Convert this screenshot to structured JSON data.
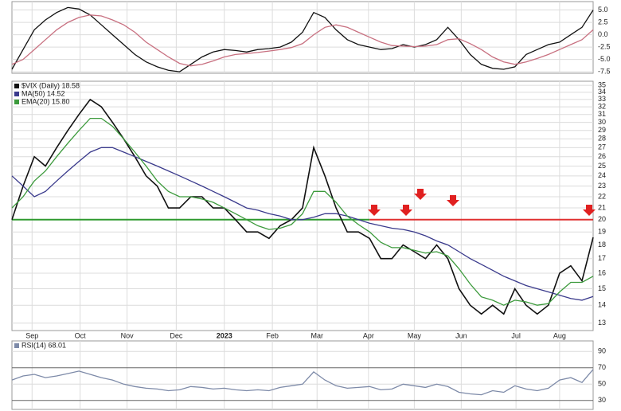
{
  "chart_data": [
    {
      "type": "line",
      "x": [
        0,
        1,
        2,
        3,
        4,
        5,
        6,
        7,
        8,
        9,
        10,
        11,
        12,
        13,
        14,
        15,
        16,
        17,
        18,
        19,
        20,
        21,
        22,
        23,
        24,
        25,
        26,
        27,
        28,
        29,
        30,
        31,
        32,
        33,
        34,
        35,
        36,
        37,
        38,
        39,
        40,
        41,
        42,
        43,
        44,
        45,
        46,
        47,
        48,
        49,
        50,
        51,
        52
      ],
      "xlim": [
        0,
        52
      ],
      "ylim": [
        -7.8,
        6.7
      ],
      "yticks": [
        {
          "value": 5,
          "label": "5.0"
        },
        2.5,
        {
          "value": 0,
          "label": "0.0"
        },
        -2.5,
        {
          "value": -5,
          "label": "-5.0"
        },
        -7.5
      ],
      "series": [
        {
          "color": "#111111",
          "values": [
            -7,
            -3,
            1,
            3,
            4.5,
            5.5,
            5.2,
            4,
            2,
            0,
            -2,
            -4,
            -5.5,
            -6.5,
            -7.2,
            -7.5,
            -6,
            -4.5,
            -3.5,
            -3,
            -3.2,
            -3.5,
            -3,
            -2.8,
            -2.5,
            -1.5,
            0.5,
            4.5,
            3.5,
            1,
            -1,
            -2,
            -2.5,
            -3,
            -2.8,
            -2,
            -2.5,
            -2,
            -1,
            1.5,
            -1,
            -4,
            -6,
            -6.8,
            -7,
            -6.5,
            -4,
            -3,
            -2,
            -1.5,
            0,
            1.5,
            5
          ]
        },
        {
          "color": "#c87080",
          "values": [
            -6,
            -5,
            -3,
            -1,
            1,
            2.5,
            3.5,
            4,
            3.8,
            3,
            2,
            0.5,
            -1.5,
            -3,
            -4.5,
            -5.8,
            -6.3,
            -6,
            -5.3,
            -4.5,
            -4,
            -3.8,
            -3.6,
            -3.3,
            -3,
            -2.6,
            -1.8,
            0,
            1.5,
            2,
            1.5,
            0.5,
            -0.5,
            -1.5,
            -2.2,
            -2.3,
            -2.4,
            -2.3,
            -2,
            -1,
            -0.8,
            -1.8,
            -3,
            -4.5,
            -5.5,
            -6,
            -5.5,
            -4.8,
            -4,
            -3,
            -2,
            -1,
            1
          ]
        }
      ]
    },
    {
      "type": "line",
      "log_y": true,
      "x": [
        0,
        1,
        2,
        3,
        4,
        5,
        6,
        7,
        8,
        9,
        10,
        11,
        12,
        13,
        14,
        15,
        16,
        17,
        18,
        19,
        20,
        21,
        22,
        23,
        24,
        25,
        26,
        27,
        28,
        29,
        30,
        31,
        32,
        33,
        34,
        35,
        36,
        37,
        38,
        39,
        40,
        41,
        42,
        43,
        44,
        45,
        46,
        47,
        48,
        49,
        50,
        51,
        52
      ],
      "xlim": [
        0,
        52
      ],
      "ylim": [
        12.6,
        35.6
      ],
      "xticks": [
        {
          "value": 1.8,
          "label": "Sep"
        },
        {
          "value": 6.1,
          "label": "Oct"
        },
        {
          "value": 10.3,
          "label": "Nov"
        },
        {
          "value": 14.7,
          "label": "Dec"
        },
        {
          "value": 19.0,
          "label": "2023"
        },
        {
          "value": 23.3,
          "label": "Feb"
        },
        {
          "value": 27.3,
          "label": "Mar"
        },
        {
          "value": 31.9,
          "label": "Apr"
        },
        {
          "value": 36.0,
          "label": "May"
        },
        {
          "value": 40.2,
          "label": "Jun"
        },
        {
          "value": 45.1,
          "label": "Jul"
        },
        {
          "value": 49.0,
          "label": "Aug"
        }
      ],
      "yticks": [
        13,
        14,
        15,
        16,
        17,
        18,
        19,
        20,
        21,
        22,
        23,
        24,
        25,
        26,
        27,
        28,
        29,
        30,
        31,
        32,
        33,
        34,
        35
      ],
      "grid": true,
      "hlines": [
        {
          "value": 20,
          "color": "#2e9a2e",
          "x": [
            0,
            32
          ]
        },
        {
          "value": 20,
          "color": "#e03030",
          "x": [
            32,
            52
          ]
        }
      ],
      "series": [
        {
          "name": "$VIX (Daily) 18.58",
          "color": "#111111",
          "values": [
            20,
            23,
            26,
            25,
            27,
            29,
            31,
            33,
            32,
            30,
            28,
            26,
            24,
            23,
            21,
            21,
            22,
            22,
            21,
            21,
            20,
            19,
            19,
            18.5,
            19.5,
            20,
            21,
            27,
            24,
            21,
            19,
            19,
            18.5,
            17,
            17,
            18,
            17.5,
            17,
            18,
            17,
            15,
            14,
            13.5,
            14,
            13.5,
            15,
            14,
            13.5,
            14,
            16,
            16.5,
            15.5,
            18.58
          ]
        },
        {
          "name": "MA(50) 14.52",
          "color": "#3a3a8c",
          "values": [
            24,
            23,
            22,
            22.5,
            23.5,
            24.5,
            25.5,
            26.5,
            27,
            27,
            26.5,
            26,
            25.5,
            25,
            24.5,
            24,
            23.5,
            23,
            22.5,
            22,
            21.5,
            21,
            20.8,
            20.5,
            20.3,
            20,
            20,
            20.2,
            20.5,
            20.5,
            20.3,
            20,
            19.7,
            19.5,
            19.3,
            19.2,
            19,
            18.7,
            18.3,
            18,
            17.5,
            17,
            16.6,
            16.2,
            15.8,
            15.5,
            15.2,
            15,
            14.8,
            14.6,
            14.4,
            14.3,
            14.52
          ]
        },
        {
          "name": "EMA(20) 15.80",
          "color": "#3c9a3c",
          "values": [
            21,
            22,
            23.5,
            24.5,
            26,
            27.5,
            29,
            30.5,
            30.5,
            29.5,
            28,
            26.5,
            25,
            23.5,
            22.5,
            22,
            22,
            21.8,
            21.5,
            21,
            20.5,
            20,
            19.5,
            19.2,
            19.3,
            19.6,
            20.5,
            22.5,
            22.5,
            21.5,
            20.3,
            19.6,
            19,
            18.2,
            17.8,
            17.8,
            17.6,
            17.4,
            17.5,
            17.2,
            16.3,
            15.3,
            14.5,
            14.3,
            14,
            14.3,
            14.2,
            14,
            14.1,
            14.8,
            15.4,
            15.4,
            15.8
          ]
        }
      ]
    },
    {
      "type": "line",
      "x": [
        0,
        1,
        2,
        3,
        4,
        5,
        6,
        7,
        8,
        9,
        10,
        11,
        12,
        13,
        14,
        15,
        16,
        17,
        18,
        19,
        20,
        21,
        22,
        23,
        24,
        25,
        26,
        27,
        28,
        29,
        30,
        31,
        32,
        33,
        34,
        35,
        36,
        37,
        38,
        39,
        40,
        41,
        42,
        43,
        44,
        45,
        46,
        47,
        48,
        49,
        50,
        51,
        52
      ],
      "xlim": [
        0,
        52
      ],
      "ylim": [
        19,
        103
      ],
      "yticks": [
        30,
        50,
        70,
        90
      ],
      "series": [
        {
          "name": "RSI(14) 68.01",
          "color": "#7d8aa8",
          "values": [
            55,
            60,
            62,
            58,
            60,
            63,
            66,
            62,
            58,
            55,
            50,
            47,
            45,
            44,
            42,
            43,
            47,
            46,
            44,
            45,
            43,
            42,
            43,
            42,
            46,
            48,
            50,
            65,
            55,
            48,
            45,
            46,
            47,
            43,
            44,
            50,
            48,
            46,
            50,
            47,
            40,
            38,
            37,
            42,
            40,
            48,
            44,
            42,
            45,
            55,
            58,
            52,
            68.01
          ]
        }
      ]
    }
  ]
}
